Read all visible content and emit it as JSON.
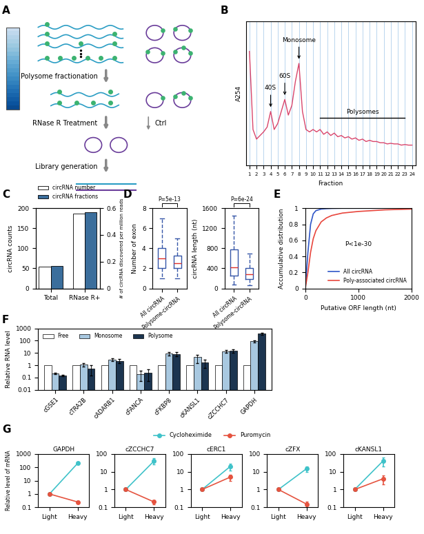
{
  "diagram": {
    "panel": "A",
    "steps": [
      "Polysome fractionation",
      "RNase R Treatment",
      "Library generation"
    ],
    "branch_label": "Ctrl"
  },
  "chart_data": [
    {
      "panel": "B",
      "type": "line",
      "x": [
        1,
        1.5,
        2,
        2.5,
        3,
        3.5,
        4,
        4.5,
        5,
        5.5,
        6,
        6.5,
        7,
        7.5,
        8,
        8.5,
        9,
        9.5,
        10,
        10.5,
        11,
        11.5,
        12,
        12.5,
        13,
        13.5,
        14,
        14.5,
        15,
        15.5,
        16,
        16.5,
        17,
        17.5,
        18,
        18.5,
        19,
        19.5,
        20,
        20.5,
        21,
        21.5,
        22,
        22.5,
        23,
        23.5,
        24
      ],
      "values": [
        95,
        30,
        22,
        25,
        28,
        32,
        45,
        30,
        35,
        45,
        55,
        42,
        50,
        70,
        85,
        45,
        30,
        28,
        30,
        28,
        30,
        26,
        28,
        25,
        27,
        24,
        25,
        23,
        24,
        22,
        23,
        21,
        22,
        20,
        21,
        20,
        20,
        19,
        19,
        18,
        18.5,
        18,
        18,
        17,
        17.5,
        17,
        17
      ],
      "color": "#d9456b",
      "xlabel": "Fraction",
      "ylabel": "A254",
      "xlim": [
        0.5,
        24.5
      ],
      "xticks": [
        1,
        2,
        3,
        4,
        5,
        6,
        7,
        8,
        9,
        10,
        11,
        12,
        13,
        14,
        15,
        16,
        17,
        18,
        19,
        20,
        21,
        22,
        23,
        24
      ],
      "ylim": [
        0,
        120
      ],
      "tick_labels": "x",
      "grid": true,
      "annotations": [
        {
          "text": "40S",
          "x": 4
        },
        {
          "text": "60S",
          "x": 6
        },
        {
          "text": "Monosome",
          "x": 8
        },
        {
          "text": "Polysomes",
          "x": [
            11,
            23
          ]
        }
      ]
    },
    {
      "panel": "C",
      "type": "bar",
      "categories": [
        "Total",
        "RNase R+"
      ],
      "series": [
        {
          "name": "circRNA number",
          "color": "#ffffff",
          "values": [
            55,
            187
          ]
        },
        {
          "name": "circRNA fractions",
          "color": "#3b6e9c",
          "values": [
            0.17,
            0.57
          ],
          "axis": "y2"
        }
      ],
      "ylabel": "circRNA counts",
      "y2label": "# of circRNA discovered per million reads",
      "ylim": [
        0,
        200
      ],
      "yticks": [
        0,
        50,
        100,
        150,
        200
      ],
      "y2lim": [
        0,
        0.6
      ],
      "y2ticks": [
        0,
        0.2,
        0.4,
        0.6
      ],
      "legend": "upper center"
    },
    {
      "panel": "D",
      "type": "box",
      "categories": [
        "All circRNA",
        "Polysome-circRNA"
      ],
      "stats": [
        {
          "whislo": 1,
          "q1": 2,
          "med": 3,
          "q3": 4,
          "whishi": 7
        },
        {
          "whislo": 1,
          "q1": 2,
          "med": 2.5,
          "q3": 3.3,
          "whishi": 5
        }
      ],
      "ylabel": "Number of exon",
      "ylim": [
        0,
        8
      ],
      "yticks": [
        0,
        2,
        4,
        6,
        8
      ],
      "color": "#3556a8",
      "annotations": [
        "P=5e-13"
      ]
    },
    {
      "type": "box",
      "categories": [
        "All circRNA",
        "Polysome-circRNA"
      ],
      "stats": [
        {
          "whislo": 80,
          "q1": 250,
          "med": 420,
          "q3": 780,
          "whishi": 1450
        },
        {
          "whislo": 60,
          "q1": 180,
          "med": 280,
          "q3": 400,
          "whishi": 700
        }
      ],
      "ylabel": "circRNA length (nt)",
      "ylim": [
        0,
        1600
      ],
      "yticks": [
        0,
        400,
        800,
        1200,
        1600
      ],
      "color": "#3556a8",
      "annotations": [
        "P=6e-24"
      ]
    },
    {
      "panel": "E",
      "type": "line",
      "x": [
        0,
        50,
        100,
        150,
        200,
        300,
        400,
        500,
        700,
        1000,
        1500,
        2000
      ],
      "series": [
        {
          "name": "All circRNA",
          "color": "#2e55c7",
          "values": [
            0,
            0.45,
            0.8,
            0.93,
            0.97,
            0.99,
            0.995,
            0.998,
            1,
            1,
            1,
            1
          ]
        },
        {
          "name": "Poly-associated circRNA",
          "color": "#e8453c",
          "values": [
            0,
            0.2,
            0.45,
            0.62,
            0.72,
            0.83,
            0.88,
            0.91,
            0.94,
            0.96,
            0.98,
            0.99
          ]
        }
      ],
      "xlabel": "Putative ORF length (nt)",
      "ylabel": "Accumulative distribution",
      "xlim": [
        0,
        2000
      ],
      "xticks": [
        0,
        1000,
        2000
      ],
      "ylim": [
        0,
        1
      ],
      "yticks": [
        0,
        0.2,
        0.4,
        0.6,
        0.8,
        1
      ],
      "legend": "lower right",
      "annotations": [
        "P<1e-30"
      ]
    },
    {
      "panel": "F",
      "type": "bar",
      "log": "y",
      "categories": [
        "cGSE1",
        "cTRA2B",
        "cADARB1",
        "cFANCA",
        "cFKBP8",
        "cKANSL1",
        "cZCCHC7",
        "GAPDH"
      ],
      "series": [
        {
          "name": "Free",
          "color": "#ffffff",
          "values": [
            1,
            1,
            1,
            1,
            1,
            1,
            1,
            1
          ]
        },
        {
          "name": "Monosome",
          "color": "#a8c8e0",
          "values": [
            0.22,
            1.1,
            3.0,
            0.2,
            9,
            4.5,
            14,
            90
          ],
          "errors": [
            0.02,
            0.3,
            0.8,
            0.15,
            3,
            3,
            3,
            20
          ]
        },
        {
          "name": "Polysome",
          "color": "#1c3550",
          "values": [
            0.15,
            0.55,
            2.3,
            0.25,
            8.5,
            1.8,
            15,
            380
          ],
          "errors": [
            0.02,
            0.4,
            0.8,
            0.2,
            3,
            1.2,
            4,
            70
          ]
        }
      ],
      "ylabel": "Relative RNA level",
      "ylim": [
        0.01,
        1000
      ],
      "yticks": [
        0.01,
        0.1,
        1,
        10,
        100,
        1000
      ],
      "legend": "upper left"
    },
    {
      "panel": "G",
      "type": "line",
      "log": "y",
      "categories": [
        "Light",
        "Heavy"
      ],
      "ylabel": "Relative level of mRNA",
      "legend": "upper center",
      "series": [
        {
          "name": "Cycloheximide",
          "color": "#3fc2c9",
          "marker": "o"
        },
        {
          "name": "Puromycin",
          "color": "#e5533f",
          "marker": "o"
        }
      ],
      "panels": [
        {
          "title": "GAPDH",
          "ylim": [
            0.1,
            1000
          ],
          "yticks": [
            0.1,
            1,
            10,
            100,
            1000
          ],
          "values": [
            [
              1,
              200
            ],
            [
              1,
              0.25
            ]
          ],
          "errors": [
            [
              0,
              40
            ],
            [
              0,
              0.05
            ]
          ]
        },
        {
          "title": "cZCCHC7",
          "ylim": [
            0.1,
            100
          ],
          "yticks": [
            0.1,
            1,
            10,
            100
          ],
          "values": [
            [
              1,
              40
            ],
            [
              1,
              0.2
            ]
          ],
          "errors": [
            [
              0,
              15
            ],
            [
              0,
              0.05
            ]
          ]
        },
        {
          "title": "cERC1",
          "ylim": [
            0.1,
            100
          ],
          "yticks": [
            0.1,
            1,
            10,
            100
          ],
          "values": [
            [
              1,
              20
            ],
            [
              1,
              5
            ]
          ],
          "errors": [
            [
              0,
              8
            ],
            [
              0,
              2
            ]
          ]
        },
        {
          "title": "cZFX",
          "ylim": [
            0.1,
            100
          ],
          "yticks": [
            0.1,
            1,
            10,
            100
          ],
          "values": [
            [
              1,
              15
            ],
            [
              1,
              0.15
            ]
          ],
          "errors": [
            [
              0,
              5
            ],
            [
              0,
              0.05
            ]
          ]
        },
        {
          "title": "cKANSL1",
          "ylim": [
            0.1,
            100
          ],
          "yticks": [
            0.1,
            1,
            10,
            100
          ],
          "values": [
            [
              1,
              40
            ],
            [
              1,
              4
            ]
          ],
          "errors": [
            [
              0,
              20
            ],
            [
              0,
              2
            ]
          ]
        }
      ]
    }
  ]
}
